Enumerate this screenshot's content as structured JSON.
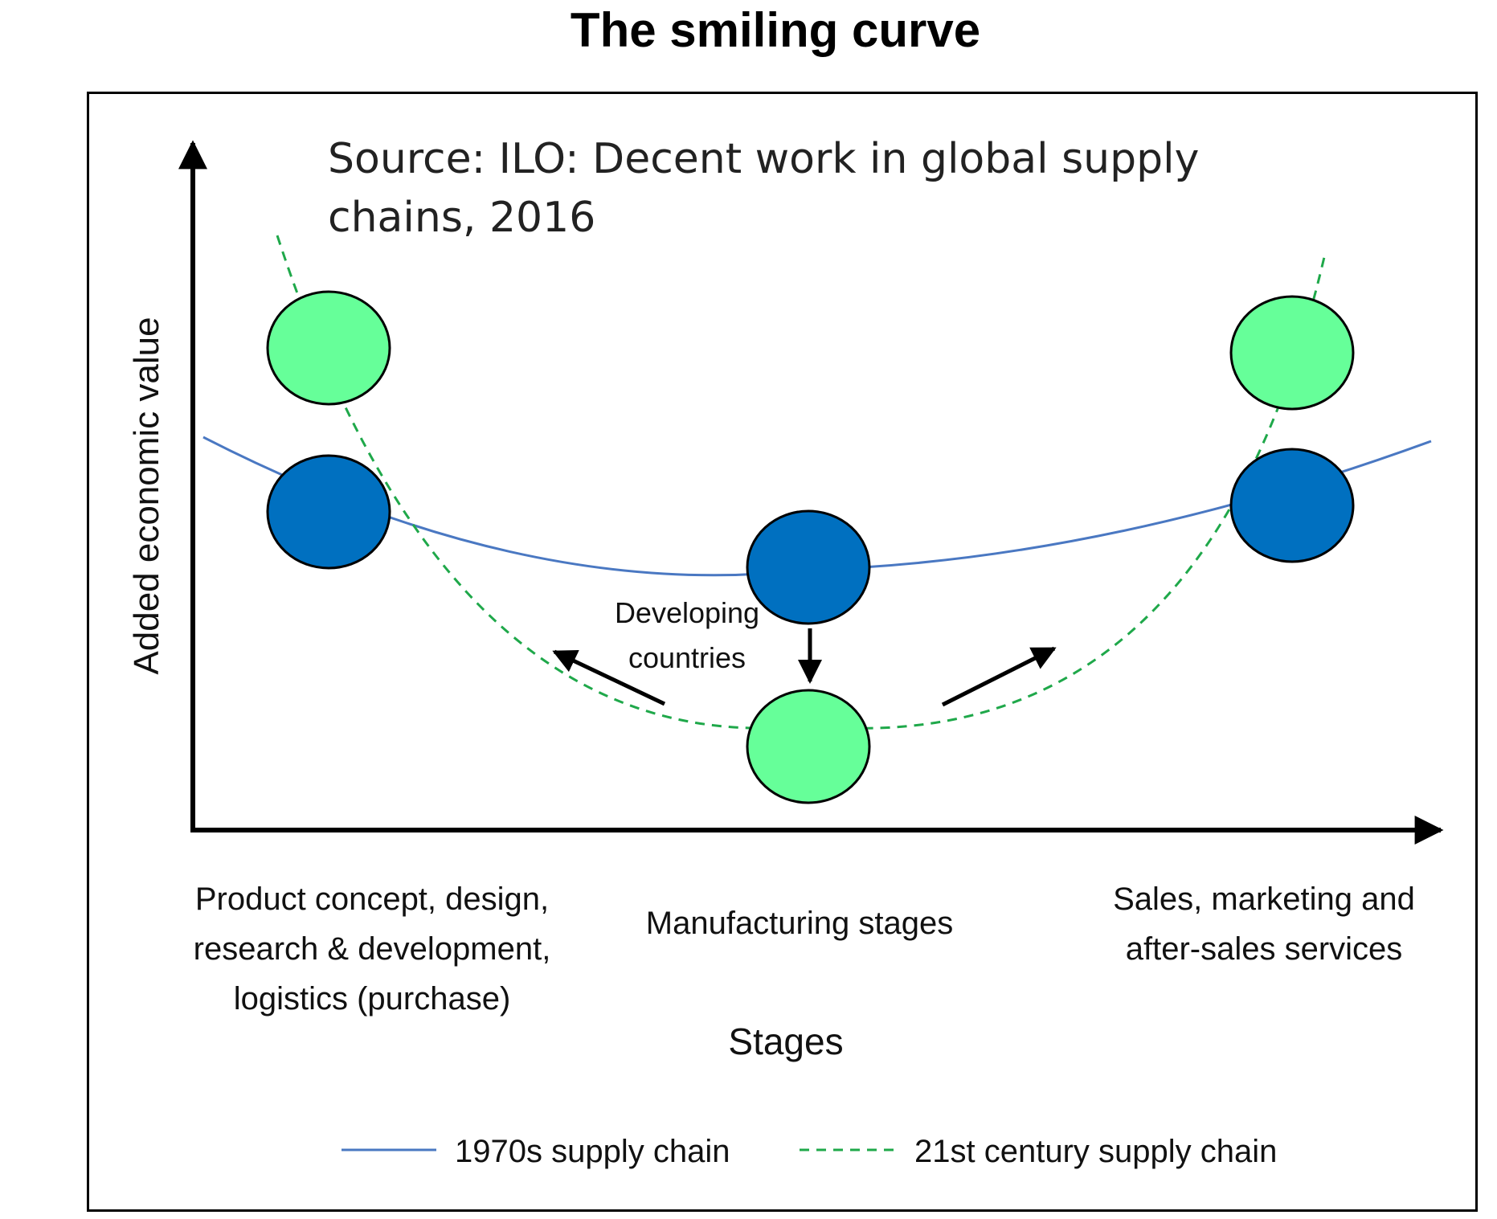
{
  "title": "The smiling curve",
  "source_line1": "Source: ILO: Decent work in global supply",
  "source_line2": "chains, 2016",
  "y_axis_label": "Added economic value",
  "x_axis_label": "Stages",
  "stages": {
    "left_line1": "Product concept, design,",
    "left_line2": "research & development,",
    "left_line3": "logistics (purchase)",
    "middle": "Manufacturing stages",
    "right_line1": "Sales, marketing and",
    "right_line2": "after-sales services"
  },
  "annotation_line1": "Developing",
  "annotation_line2": "countries",
  "legend": {
    "series1": "1970s supply chain",
    "series2": "21st century supply chain"
  },
  "colors": {
    "series1_line": "#4a78c2",
    "series2_line": "#1fa84a",
    "node_1970s": "#0070c0",
    "node_21st": "#66ff99",
    "outline": "#000000"
  }
}
